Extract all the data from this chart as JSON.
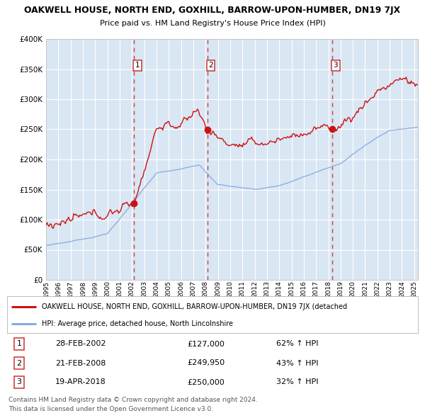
{
  "title": "OAKWELL HOUSE, NORTH END, GOXHILL, BARROW-UPON-HUMBER, DN19 7JX",
  "subtitle": "Price paid vs. HM Land Registry's House Price Index (HPI)",
  "legend_line1": "OAKWELL HOUSE, NORTH END, GOXHILL, BARROW-UPON-HUMBER, DN19 7JX (detached",
  "legend_line2": "HPI: Average price, detached house, North Lincolnshire",
  "transactions": [
    {
      "num": 1,
      "date": "28-FEB-2002",
      "price": 127000,
      "pct": "62%",
      "dir": "↑",
      "year_x": 2002.15
    },
    {
      "num": 2,
      "date": "21-FEB-2008",
      "price": 249950,
      "pct": "43%",
      "dir": "↑",
      "year_x": 2008.13
    },
    {
      "num": 3,
      "date": "19-APR-2018",
      "price": 250000,
      "pct": "32%",
      "dir": "↑",
      "year_x": 2018.3
    }
  ],
  "footer1": "Contains HM Land Registry data © Crown copyright and database right 2024.",
  "footer2": "This data is licensed under the Open Government Licence v3.0.",
  "hpi_color": "#88aadd",
  "house_color": "#cc1111",
  "dashed_color": "#cc2222",
  "plot_bg": "#e8f0f8",
  "shade_color": "#d0e0f0",
  "ylim": [
    0,
    400000
  ],
  "xlim_start": 1995.0,
  "xlim_end": 2025.3,
  "ytick_vals": [
    0,
    50000,
    100000,
    150000,
    200000,
    250000,
    300000,
    350000,
    400000
  ],
  "ytick_labels": [
    "£0",
    "£50K",
    "£100K",
    "£150K",
    "£200K",
    "£250K",
    "£300K",
    "£350K",
    "£400K"
  ]
}
